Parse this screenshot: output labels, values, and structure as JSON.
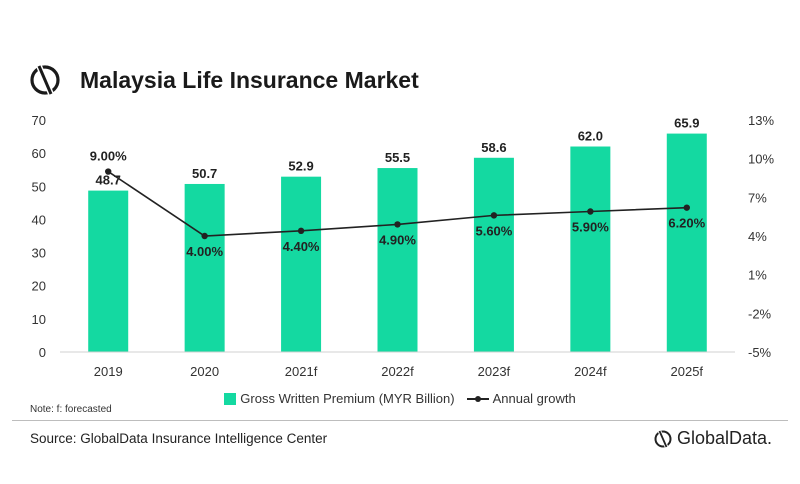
{
  "header": {
    "title": "Malaysia Life Insurance Market",
    "logo_icon": "globaldata-logo-icon"
  },
  "colors": {
    "bar": "#14d9a1",
    "line": "#222222",
    "axis": "#d0d0d0"
  },
  "chart_data": {
    "type": "bar+line",
    "categories": [
      "2019",
      "2020",
      "2021f",
      "2022f",
      "2023f",
      "2024f",
      "2025f"
    ],
    "series": [
      {
        "name": "Gross Written Premium (MYR Billion)",
        "type": "bar",
        "axis": "left",
        "values": [
          48.7,
          50.7,
          52.9,
          55.5,
          58.6,
          62.0,
          65.9
        ],
        "labels": [
          "48.7",
          "50.7",
          "52.9",
          "55.5",
          "58.6",
          "62.0",
          "65.9"
        ]
      },
      {
        "name": "Annual growth",
        "type": "line",
        "axis": "right",
        "values": [
          9.0,
          4.0,
          4.4,
          4.9,
          5.6,
          5.9,
          6.2
        ],
        "labels": [
          "9.00%",
          "4.00%",
          "4.40%",
          "4.90%",
          "5.60%",
          "5.90%",
          "6.20%"
        ]
      }
    ],
    "y_left": {
      "min": 0,
      "max": 70,
      "ticks": [
        "0",
        "10",
        "20",
        "30",
        "40",
        "50",
        "60",
        "70"
      ]
    },
    "y_right": {
      "min": -5,
      "max": 13,
      "ticks": [
        "-5%",
        "-2%",
        "1%",
        "4%",
        "7%",
        "10%",
        "13%"
      ]
    },
    "grid": false,
    "legend_position": "bottom"
  },
  "note": "Note: f: forecasted",
  "footer": {
    "source": "Source: GlobalData Insurance Intelligence Center",
    "brand": "GlobalData."
  }
}
